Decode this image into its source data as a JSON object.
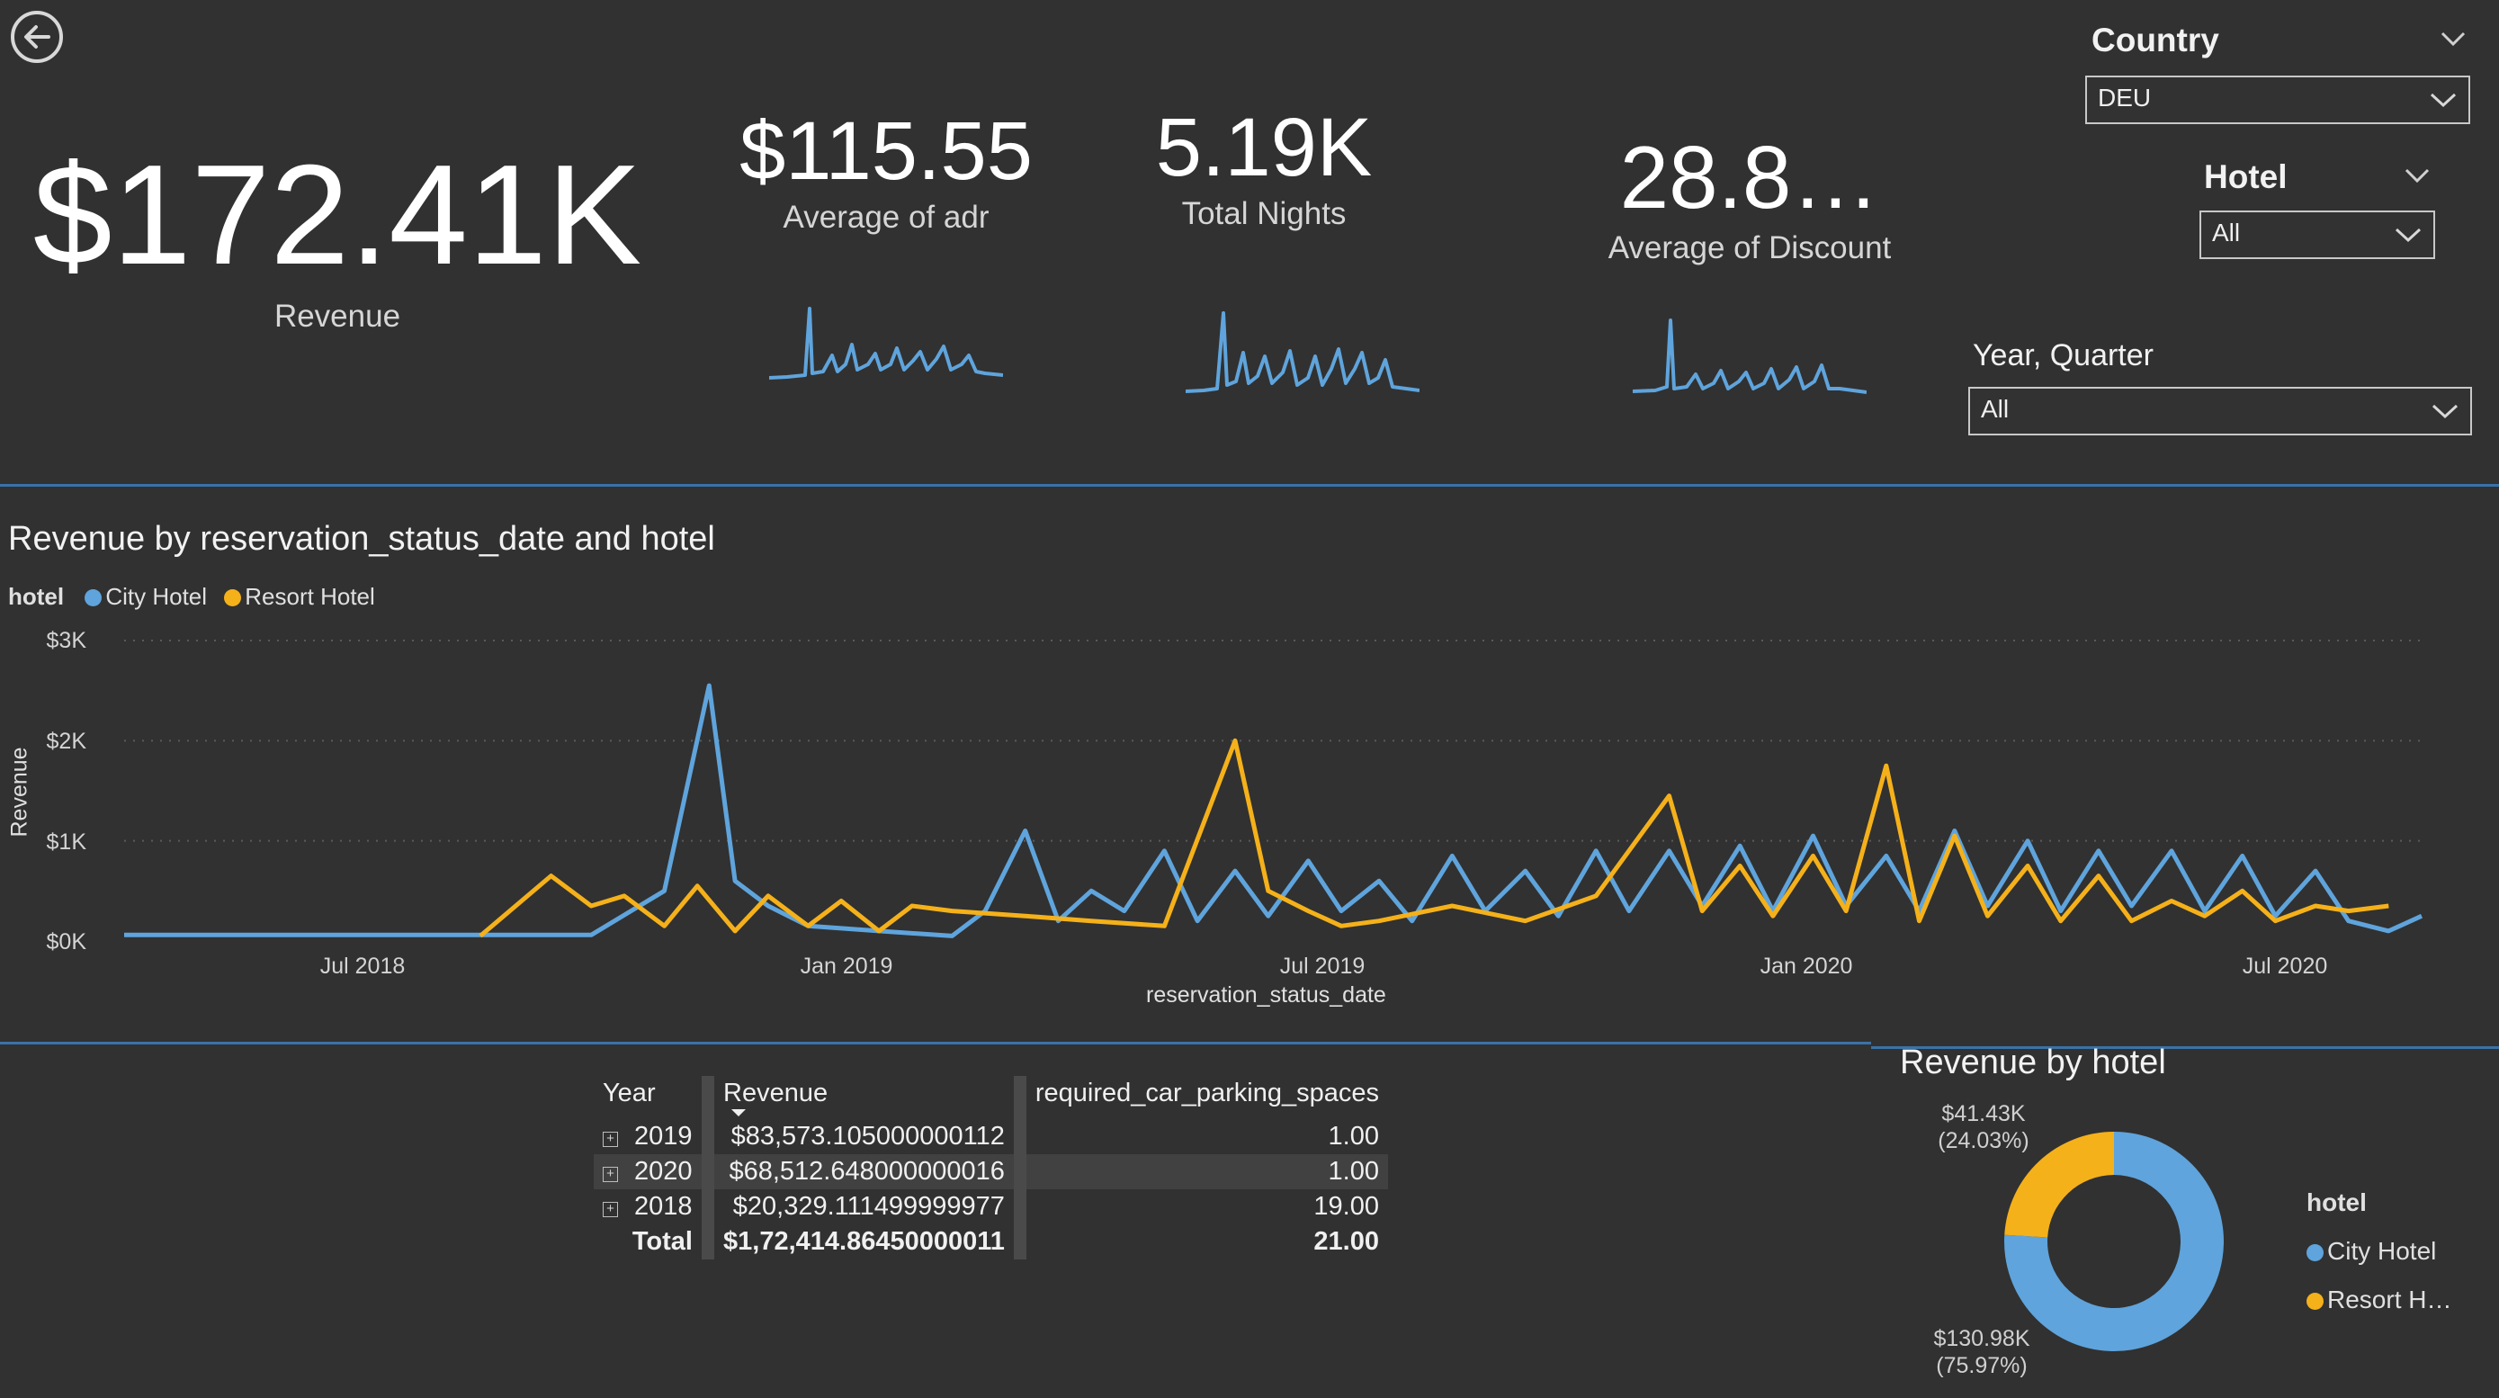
{
  "nav": {
    "back_icon": "arrow-left-circle-icon"
  },
  "kpis": [
    {
      "value": "$172.41K",
      "label": "Revenue"
    },
    {
      "value": "$115.55",
      "label": "Average of adr"
    },
    {
      "value": "5.19K",
      "label": "Total Nights"
    },
    {
      "value": "28.8…",
      "label": "Average of Discount"
    }
  ],
  "slicers": {
    "country": {
      "title": "Country",
      "value": "DEU"
    },
    "hotel": {
      "title": "Hotel",
      "value": "All"
    },
    "year_quarter": {
      "title": "Year, Quarter",
      "value": "All"
    }
  },
  "colors": {
    "city": "#5fa4dc",
    "resort": "#f5b11a",
    "accent": "#3a72a8"
  },
  "line_chart": {
    "title": "Revenue by reservation_status_date and hotel",
    "legend_title": "hotel",
    "legend": [
      "City Hotel",
      "Resort Hotel"
    ],
    "ylabel": "Revenue",
    "xlabel": "reservation_status_date",
    "y_ticks": [
      "$3K",
      "$2K",
      "$1K",
      "$0K"
    ],
    "x_ticks": [
      "Jul 2018",
      "Jan 2019",
      "Jul 2019",
      "Jan 2020",
      "Jul 2020"
    ]
  },
  "matrix": {
    "headers": [
      "Year",
      "Revenue",
      "required_car_parking_spaces"
    ],
    "rows": [
      {
        "year": "2019",
        "revenue": "$83,573.105000000112",
        "parking": "1.00"
      },
      {
        "year": "2020",
        "revenue": "$68,512.648000000016",
        "parking": "1.00"
      },
      {
        "year": "2018",
        "revenue": "$20,329.111499999977",
        "parking": "19.00"
      }
    ],
    "total": {
      "label": "Total",
      "revenue": "$1,72,414.86450000011",
      "parking": "21.00"
    }
  },
  "donut": {
    "title": "Revenue by hotel",
    "legend_title": "hotel",
    "legend": [
      "City Hotel",
      "Resort H…"
    ],
    "resort_label": "$41.43K",
    "resort_pct": "(24.03%)",
    "city_label": "$130.98K",
    "city_pct": "(75.97%)"
  },
  "chart_data": [
    {
      "type": "line",
      "title": "Revenue by reservation_status_date and hotel",
      "xlabel": "reservation_status_date",
      "ylabel": "Revenue",
      "x_range": [
        "2018-01-15",
        "2020-09-15"
      ],
      "ylim": [
        0,
        3000
      ],
      "y_ticks": [
        0,
        1000,
        2000,
        3000
      ],
      "x_ticks": [
        "Jul 2018",
        "Jan 2019",
        "Jul 2019",
        "Jan 2020",
        "Jul 2020"
      ],
      "grid": true,
      "legend_position": "top-left",
      "series": [
        {
          "name": "City Hotel",
          "x": [
            "2018-01-15",
            "2018-03-01",
            "2018-05-01",
            "2018-07-01",
            "2018-08-01",
            "2018-09-01",
            "2018-09-20",
            "2018-10-01",
            "2018-10-15",
            "2018-11-01",
            "2018-12-01",
            "2019-01-01",
            "2019-01-15",
            "2019-02-01",
            "2019-02-15",
            "2019-03-01",
            "2019-03-15",
            "2019-04-01",
            "2019-04-15",
            "2019-05-01",
            "2019-05-15",
            "2019-06-01",
            "2019-06-15",
            "2019-07-01",
            "2019-07-15",
            "2019-08-01",
            "2019-08-15",
            "2019-09-01",
            "2019-09-15",
            "2019-10-01",
            "2019-10-15",
            "2019-11-01",
            "2019-11-15",
            "2019-12-01",
            "2019-12-15",
            "2020-01-01",
            "2020-01-15",
            "2020-02-01",
            "2020-02-15",
            "2020-03-01",
            "2020-03-15",
            "2020-04-01",
            "2020-04-15",
            "2020-05-01",
            "2020-05-15",
            "2020-06-01",
            "2020-06-15",
            "2020-07-01",
            "2020-07-15",
            "2020-08-01",
            "2020-08-15",
            "2020-09-01",
            "2020-09-15"
          ],
          "values": [
            60,
            60,
            60,
            60,
            60,
            500,
            2550,
            600,
            350,
            150,
            100,
            50,
            300,
            1100,
            200,
            500,
            300,
            900,
            200,
            700,
            250,
            800,
            300,
            600,
            200,
            850,
            300,
            700,
            250,
            900,
            300,
            900,
            350,
            950,
            300,
            1050,
            350,
            850,
            300,
            1100,
            350,
            1000,
            300,
            900,
            350,
            900,
            300,
            850,
            250,
            700,
            200,
            100,
            250
          ]
        },
        {
          "name": "Resort Hotel",
          "x": [
            "2018-06-15",
            "2018-07-15",
            "2018-08-01",
            "2018-08-15",
            "2018-09-01",
            "2018-09-15",
            "2018-10-01",
            "2018-10-15",
            "2018-11-01",
            "2018-11-15",
            "2018-12-01",
            "2018-12-15",
            "2019-01-01",
            "2019-02-01",
            "2019-03-01",
            "2019-04-01",
            "2019-05-01",
            "2019-05-15",
            "2019-06-01",
            "2019-06-15",
            "2019-07-01",
            "2019-08-01",
            "2019-09-01",
            "2019-10-01",
            "2019-11-01",
            "2019-11-15",
            "2019-12-01",
            "2019-12-15",
            "2020-01-01",
            "2020-01-15",
            "2020-02-01",
            "2020-02-15",
            "2020-03-01",
            "2020-03-15",
            "2020-04-01",
            "2020-04-15",
            "2020-05-01",
            "2020-05-15",
            "2020-06-01",
            "2020-06-15",
            "2020-07-01",
            "2020-07-15",
            "2020-08-01",
            "2020-08-15",
            "2020-09-01"
          ],
          "values": [
            50,
            650,
            350,
            450,
            150,
            550,
            100,
            450,
            150,
            400,
            100,
            350,
            300,
            250,
            200,
            150,
            2000,
            500,
            300,
            150,
            200,
            350,
            200,
            450,
            1450,
            300,
            750,
            250,
            850,
            300,
            1750,
            200,
            1050,
            250,
            750,
            200,
            650,
            200,
            400,
            250,
            500,
            200,
            350,
            300,
            350
          ]
        }
      ]
    },
    {
      "type": "pie",
      "title": "Revenue by hotel",
      "categories": [
        "City Hotel",
        "Resort Hotel"
      ],
      "values": [
        130.98,
        41.43
      ],
      "unit": "$K",
      "percentages": [
        75.97,
        24.03
      ],
      "donut": true,
      "legend_position": "right"
    },
    {
      "type": "table",
      "columns": [
        "Year",
        "Revenue",
        "required_car_parking_spaces"
      ],
      "rows": [
        [
          "2019",
          "$83,573.105000000112",
          "1.00"
        ],
        [
          "2020",
          "$68,512.648000000016",
          "1.00"
        ],
        [
          "2018",
          "$20,329.111499999977",
          "19.00"
        ],
        [
          "Total",
          "$1,72,414.86450000011",
          "21.00"
        ]
      ]
    }
  ]
}
